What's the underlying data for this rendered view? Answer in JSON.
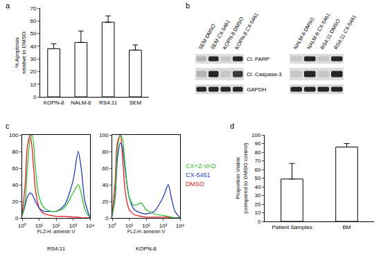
{
  "chart_data": [
    {
      "type": "bar",
      "panel": "a",
      "categories": [
        "KOPN-8",
        "NALM-6",
        "RS4;11",
        "SEM"
      ],
      "values": [
        38,
        43,
        59,
        37
      ],
      "errors": [
        4,
        9,
        5,
        4
      ],
      "y_label": "% Apoptosis relative to DMSO",
      "ylim": [
        0,
        70
      ],
      "yticks": [
        0,
        10,
        20,
        30,
        40,
        50,
        60,
        70
      ],
      "color": "#ffffff"
    },
    {
      "type": "line",
      "panel": "c",
      "title": "RS4;11",
      "log": "x",
      "x": [
        1,
        1.5,
        2,
        3,
        4,
        6,
        10,
        20,
        50,
        100,
        300,
        1000,
        2000,
        3000,
        5000,
        10000
      ],
      "series": [
        {
          "name": "CX+Z-VAD",
          "color": "#2cbf2c",
          "values": [
            3,
            20,
            60,
            95,
            100,
            60,
            25,
            12,
            8,
            8,
            12,
            30,
            40,
            30,
            10,
            0
          ]
        },
        {
          "name": "CX-5461",
          "color": "#1f3fbf",
          "values": [
            3,
            15,
            25,
            30,
            28,
            20,
            12,
            8,
            8,
            8,
            15,
            45,
            80,
            60,
            20,
            0
          ]
        },
        {
          "name": "DMSO",
          "color": "#e8191c",
          "values": [
            5,
            40,
            85,
            100,
            80,
            35,
            12,
            5,
            3,
            2,
            2,
            1,
            1,
            0,
            0,
            0
          ]
        }
      ],
      "x_label": "FL2-H: annexin V",
      "xlim": [
        1,
        10000
      ],
      "xticks": [
        {
          "value": 1,
          "label": "10⁰"
        },
        {
          "value": 10,
          "label": "10¹"
        },
        {
          "value": 100,
          "label": "10²"
        },
        {
          "value": 1000,
          "label": "10³"
        },
        {
          "value": 10000,
          "label": "10⁴"
        }
      ],
      "ylim": [
        0,
        100
      ],
      "yticks": [
        0,
        20,
        40,
        60,
        80,
        100
      ]
    },
    {
      "type": "line",
      "title": "KOPN-8",
      "log": "x",
      "x": [
        1,
        1.5,
        2,
        3,
        4,
        6,
        10,
        20,
        50,
        100,
        300,
        1000,
        2000,
        3000,
        5000,
        10000
      ],
      "series": [
        {
          "name": "CX+Z-VAD",
          "color": "#2cbf2c",
          "values": [
            3,
            30,
            80,
            100,
            95,
            60,
            25,
            15,
            18,
            10,
            5,
            3,
            2,
            1,
            0,
            0
          ]
        },
        {
          "name": "CX-5461",
          "color": "#1f3fbf",
          "values": [
            3,
            25,
            70,
            90,
            85,
            55,
            25,
            10,
            6,
            5,
            8,
            25,
            40,
            25,
            8,
            0
          ]
        },
        {
          "name": "DMSO",
          "color": "#e8191c",
          "values": [
            5,
            45,
            90,
            100,
            75,
            30,
            10,
            4,
            2,
            1,
            1,
            1,
            1,
            0,
            0,
            0
          ]
        }
      ],
      "x_label": "FL2-H: annexin V",
      "xlim": [
        1,
        10000
      ],
      "xticks": [
        {
          "value": 1,
          "label": "10⁰"
        },
        {
          "value": 10,
          "label": "10¹"
        },
        {
          "value": 100,
          "label": "10²"
        },
        {
          "value": 1000,
          "label": "10³"
        },
        {
          "value": 10000,
          "label": "10⁴"
        }
      ],
      "ylim": [
        0,
        100
      ],
      "yticks": [
        0,
        20,
        40,
        60,
        80,
        100
      ]
    },
    {
      "type": "bar",
      "panel": "d",
      "categories": [
        "Patient Samples",
        "BM"
      ],
      "values": [
        49,
        86
      ],
      "errors": [
        18,
        4
      ],
      "y_label": "Proportion Viable (compared to DMSO control)",
      "ylim": [
        0,
        100
      ],
      "yticks": [
        0,
        10,
        20,
        30,
        40,
        50,
        60,
        70,
        80,
        90,
        100
      ],
      "color": "#ffffff"
    }
  ],
  "blot": {
    "panel": "b",
    "rows": [
      "Cl. PARP",
      "Cl. Caspase-3",
      "GAPDH"
    ],
    "blocks": [
      {
        "lanes": [
          "SEM DMSO",
          "SEM CX-5461",
          "KOPN-8 DMSO",
          "KOPN-8 CX-5461"
        ],
        "bands": [
          [
            0.2,
            0.9,
            0.1,
            0.9
          ],
          [
            0.2,
            0.9,
            0.1,
            0.8
          ],
          [
            0.9,
            0.9,
            0.9,
            0.9
          ]
        ]
      },
      {
        "lanes": [
          "NALM-6 DMSO",
          "NALM-6 CX-5461",
          "RS4;11 DMSO",
          "RS4;11 CX-5461"
        ],
        "bands": [
          [
            0.1,
            0.9,
            0.1,
            0.9
          ],
          [
            0.1,
            0.9,
            0.1,
            0.9
          ],
          [
            0.9,
            0.9,
            0.9,
            0.9
          ]
        ]
      }
    ]
  }
}
